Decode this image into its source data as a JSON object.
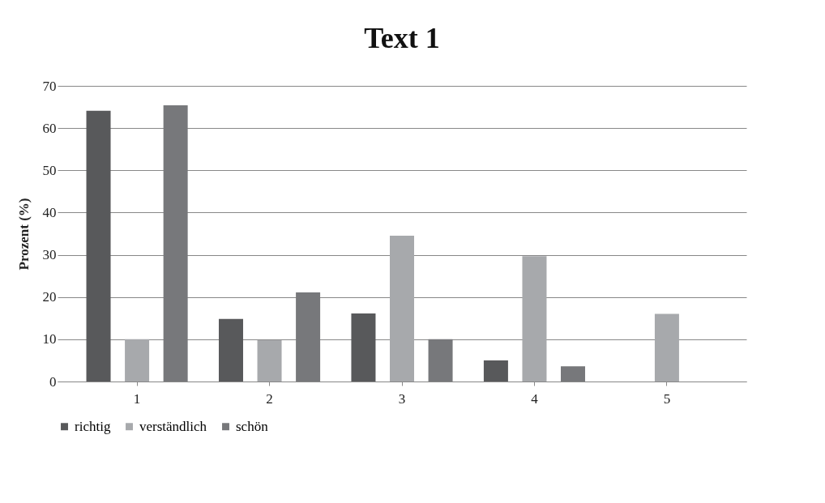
{
  "chart_data": {
    "type": "bar",
    "title": "Text 1",
    "ylabel": "Prozent (%)",
    "categories": [
      "1",
      "2",
      "3",
      "4",
      "5"
    ],
    "series": [
      {
        "name": "richtig",
        "color": "#58595b",
        "values": [
          64.1,
          14.8,
          16.1,
          5,
          0
        ]
      },
      {
        "name": "verständlich",
        "color": "#a7a9ac",
        "values": [
          10,
          9.8,
          34.5,
          29.7,
          16
        ]
      },
      {
        "name": "schön",
        "color": "#77787b",
        "values": [
          65.4,
          21.1,
          10,
          3.6,
          0
        ]
      }
    ],
    "ylim": [
      0,
      70
    ],
    "yticks": [
      0,
      10,
      20,
      30,
      40,
      50,
      60,
      70
    ],
    "grid": "y",
    "legend": "bottom"
  }
}
